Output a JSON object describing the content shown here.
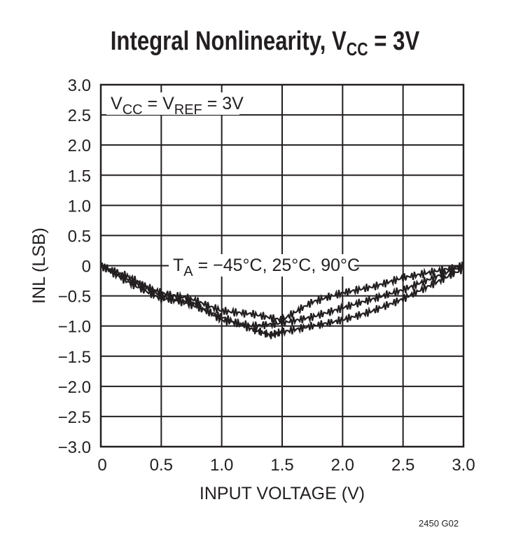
{
  "chart_data": {
    "type": "line",
    "title": "Integral Nonlinearity, V",
    "title_sub": "CC",
    "title_tail": " = 3V",
    "xlabel": "INPUT VOLTAGE (V)",
    "ylabel": "INL (LSB)",
    "xlim": [
      0,
      3.0
    ],
    "ylim": [
      -3.0,
      3.0
    ],
    "grid": true,
    "xticks": [
      "0",
      "0.5",
      "1.0",
      "1.5",
      "2.0",
      "2.5",
      "3.0"
    ],
    "yticks": [
      "3.0",
      "2.5",
      "2.0",
      "1.5",
      "1.0",
      "0.5",
      "0",
      "−0.5",
      "−1.0",
      "−1.5",
      "−2.0",
      "−2.5",
      "−3.0"
    ],
    "annotations": {
      "condition": {
        "a": "V",
        "a_sub": "CC",
        "b": " = V",
        "b_sub": "REF",
        "c": " = 3V"
      },
      "temps": {
        "a": "T",
        "a_sub": "A",
        "b": " = −45°C, 25°C, 90°C"
      }
    },
    "line_color": "#231f20",
    "series": [
      {
        "x": [
          0,
          0.25,
          0.5,
          0.75,
          1.0,
          1.25,
          1.5,
          1.75,
          2.0,
          2.25,
          2.5,
          2.75,
          3.0
        ],
        "y": [
          0,
          -0.25,
          -0.45,
          -0.55,
          -0.75,
          -0.8,
          -0.9,
          -0.6,
          -0.45,
          -0.35,
          -0.2,
          -0.1,
          0
        ]
      },
      {
        "x": [
          0,
          0.25,
          0.5,
          0.75,
          1.0,
          1.25,
          1.5,
          1.75,
          2.0,
          2.25,
          2.5,
          2.75,
          3.0
        ],
        "y": [
          0,
          -0.3,
          -0.55,
          -0.6,
          -0.9,
          -1.0,
          -0.95,
          -0.85,
          -0.7,
          -0.55,
          -0.4,
          -0.2,
          0
        ]
      },
      {
        "x": [
          0,
          0.25,
          0.5,
          0.75,
          1.0,
          1.25,
          1.4,
          1.5,
          1.75,
          2.0,
          2.25,
          2.5,
          2.75,
          3.0
        ],
        "y": [
          0,
          -0.2,
          -0.5,
          -0.65,
          -0.85,
          -1.05,
          -1.15,
          -1.1,
          -1.0,
          -0.9,
          -0.75,
          -0.55,
          -0.3,
          -0.05
        ]
      }
    ]
  },
  "footer": "2450 G02"
}
